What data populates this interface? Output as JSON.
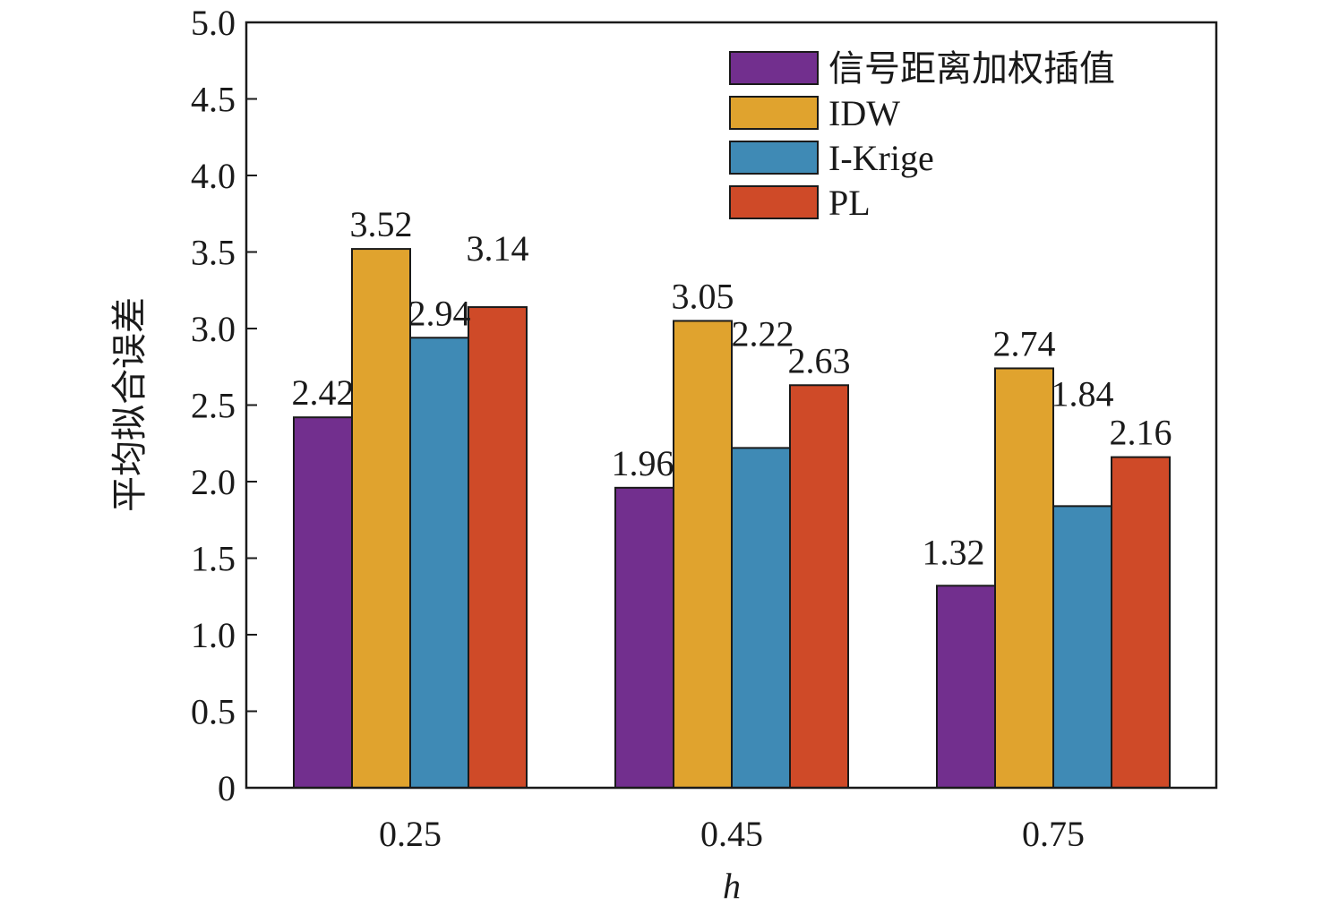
{
  "chart_data": {
    "type": "bar",
    "categories": [
      "0.25",
      "0.45",
      "0.75"
    ],
    "series": [
      {
        "name": "信号距离加权插值",
        "color": "#722f8e",
        "values": [
          2.42,
          1.96,
          1.32
        ]
      },
      {
        "name": "IDW",
        "color": "#e0a32e",
        "values": [
          3.52,
          3.05,
          2.74
        ]
      },
      {
        "name": "I-Krige",
        "color": "#3f8ab5",
        "values": [
          2.94,
          2.22,
          1.84
        ]
      },
      {
        "name": "PL",
        "color": "#cf4a28",
        "values": [
          3.14,
          2.63,
          2.16
        ]
      }
    ],
    "data_labels": [
      [
        "2.42",
        "1.96",
        "1.32"
      ],
      [
        "3.52",
        "3.05",
        "2.74"
      ],
      [
        "2.94",
        "2.22",
        "1.84"
      ],
      [
        "3.14",
        "2.63",
        "2.16"
      ]
    ],
    "xlabel": "h",
    "ylabel": "平均拟合误差",
    "ylim": [
      0,
      5.0
    ],
    "yticks": [
      0,
      0.5,
      1.0,
      1.5,
      2.0,
      2.5,
      3.0,
      3.5,
      4.0,
      4.5,
      5.0
    ],
    "ytick_labels": [
      "0",
      "0.5",
      "1.0",
      "1.5",
      "2.0",
      "2.5",
      "3.0",
      "3.5",
      "4.0",
      "4.5",
      "5.0"
    ],
    "grid": false,
    "legend_position": "top-right"
  }
}
